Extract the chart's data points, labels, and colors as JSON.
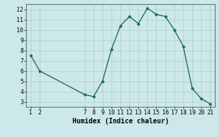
{
  "x": [
    1,
    2,
    7,
    8,
    9,
    10,
    11,
    12,
    13,
    14,
    15,
    16,
    17,
    18,
    19,
    20,
    21
  ],
  "y": [
    7.5,
    6.0,
    3.7,
    3.5,
    5.0,
    8.1,
    10.4,
    11.3,
    10.6,
    12.1,
    11.5,
    11.3,
    10.0,
    8.4,
    4.3,
    3.3,
    2.8
  ],
  "line_color": "#1a6b5a",
  "marker_color": "#1a6b5a",
  "bg_color": "#cde8e8",
  "grid_color": "#b0d0d0",
  "xlabel": "Humidex (Indice chaleur)",
  "xlabel_fontsize": 7,
  "ylim": [
    2.5,
    12.5
  ],
  "yticks": [
    3,
    4,
    5,
    6,
    7,
    8,
    9,
    10,
    11,
    12
  ],
  "xticks": [
    1,
    2,
    7,
    8,
    9,
    10,
    11,
    12,
    13,
    14,
    15,
    16,
    17,
    18,
    19,
    20,
    21
  ],
  "xlim": [
    0.5,
    21.5
  ],
  "tick_fontsize": 6,
  "linewidth": 1.0,
  "markersize": 2.5
}
